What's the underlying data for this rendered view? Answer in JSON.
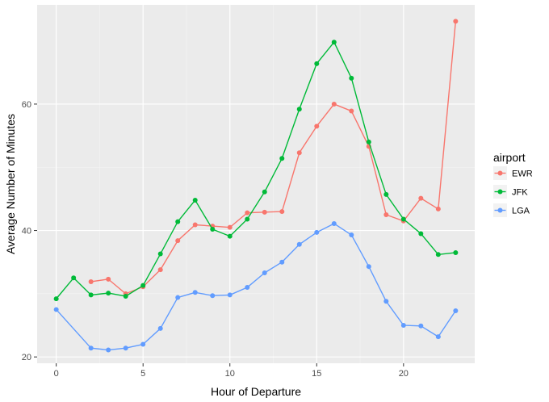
{
  "chart_data": {
    "type": "line",
    "xlabel": "Hour of Departure",
    "ylabel": "Average Number of Minutes",
    "xlim": [
      -1.1,
      24.1
    ],
    "ylim": [
      19,
      75.7
    ],
    "x_ticks": [
      0,
      5,
      10,
      15,
      20
    ],
    "y_ticks": [
      20,
      40,
      60
    ],
    "grid": true,
    "legend_position": "right",
    "legend": {
      "title": "airport"
    },
    "series": [
      {
        "name": "EWR",
        "color": "#F8766D",
        "x": [
          2,
          3,
          4,
          5,
          6,
          7,
          8,
          9,
          10,
          11,
          12,
          13,
          14,
          15,
          16,
          17,
          18,
          19,
          20,
          21,
          22,
          23
        ],
        "values": [
          31.9,
          32.3,
          30.0,
          31.1,
          33.8,
          38.4,
          40.9,
          40.7,
          40.5,
          42.8,
          42.9,
          43.0,
          52.3,
          56.5,
          60.0,
          58.9,
          53.3,
          42.5,
          41.5,
          45.1,
          43.4,
          73.1
        ]
      },
      {
        "name": "JFK",
        "color": "#00BA38",
        "x": [
          0,
          1,
          2,
          3,
          4,
          5,
          6,
          7,
          8,
          9,
          10,
          11,
          12,
          13,
          14,
          15,
          16,
          17,
          18,
          19,
          20,
          21,
          22,
          23
        ],
        "values": [
          29.2,
          32.5,
          29.8,
          30.1,
          29.6,
          31.3,
          36.3,
          41.4,
          44.8,
          40.2,
          39.1,
          41.8,
          46.1,
          51.4,
          59.2,
          66.4,
          69.8,
          64.1,
          54.0,
          45.7,
          41.8,
          39.5,
          36.2,
          36.5
        ]
      },
      {
        "name": "LGA",
        "color": "#619CFF",
        "x": [
          0,
          2,
          3,
          4,
          5,
          6,
          7,
          8,
          9,
          10,
          11,
          12,
          13,
          14,
          15,
          16,
          17,
          18,
          19,
          20,
          21,
          22,
          23
        ],
        "values": [
          27.5,
          21.4,
          21.1,
          21.4,
          22.0,
          24.5,
          29.4,
          30.2,
          29.7,
          29.8,
          31.0,
          33.3,
          35.0,
          37.8,
          39.7,
          41.1,
          39.3,
          34.3,
          28.8,
          25.0,
          24.9,
          23.2,
          27.3
        ]
      }
    ]
  }
}
